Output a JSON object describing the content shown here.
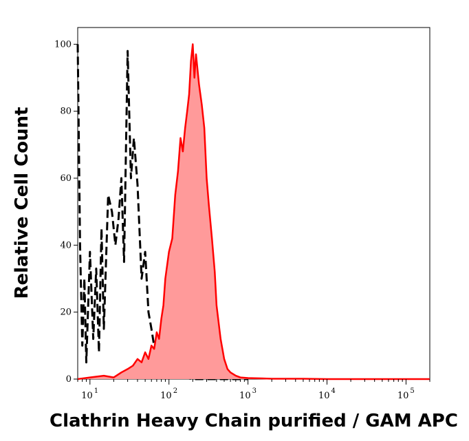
{
  "chart_data": {
    "type": "area",
    "xlabel": "Clathrin Heavy Chain purified / GAM APC",
    "ylabel": "Relative Cell Count",
    "x_scale": "log",
    "xlim": [
      7,
      200000
    ],
    "ylim": [
      0,
      105
    ],
    "y_ticks": [
      "0",
      "20",
      "40",
      "60",
      "80",
      "100"
    ],
    "y_tick_values": [
      0,
      20,
      40,
      60,
      80,
      100
    ],
    "x_ticks": [
      {
        "base": "10",
        "exp": "1",
        "value": 10
      },
      {
        "base": "10",
        "exp": "2",
        "value": 100
      },
      {
        "base": "10",
        "exp": "3",
        "value": 1000
      },
      {
        "base": "10",
        "exp": "4",
        "value": 10000
      },
      {
        "base": "10",
        "exp": "5",
        "value": 100000
      }
    ],
    "grid": false,
    "series": [
      {
        "style": "dashed-black",
        "color": "#000000",
        "x": [
          7,
          7.5,
          8,
          8.5,
          9,
          10,
          11,
          12,
          13,
          14,
          15,
          17,
          19,
          21,
          23,
          25,
          27,
          30,
          33,
          36,
          40,
          45,
          50,
          55,
          60,
          70,
          80,
          90,
          100,
          120,
          150,
          200,
          300,
          500,
          1000
        ],
        "y": [
          100,
          40,
          10,
          30,
          5,
          38,
          12,
          33,
          8,
          45,
          15,
          55,
          50,
          40,
          48,
          60,
          35,
          98,
          60,
          72,
          58,
          30,
          38,
          20,
          15,
          5,
          8,
          2,
          6,
          1,
          0.5,
          0,
          0,
          0,
          0
        ]
      },
      {
        "style": "filled-red",
        "color": "#ff0000",
        "fill": "#ff9a9a",
        "x": [
          7,
          10,
          15,
          20,
          25,
          30,
          35,
          40,
          45,
          50,
          55,
          60,
          65,
          70,
          75,
          80,
          85,
          90,
          100,
          110,
          120,
          130,
          140,
          150,
          160,
          170,
          180,
          190,
          200,
          210,
          220,
          240,
          260,
          280,
          300,
          320,
          350,
          380,
          400,
          450,
          500,
          550,
          600,
          700,
          800,
          1000,
          1500,
          2000,
          5000,
          10000,
          50000,
          200000
        ],
        "y": [
          0,
          0.5,
          1,
          0.5,
          2,
          3,
          4,
          6,
          5,
          8,
          6,
          10,
          9,
          14,
          12,
          18,
          22,
          30,
          38,
          42,
          55,
          62,
          72,
          68,
          75,
          80,
          85,
          95,
          100,
          90,
          97,
          88,
          82,
          75,
          60,
          52,
          42,
          32,
          22,
          12,
          6,
          3,
          2,
          1,
          0.5,
          0.3,
          0.2,
          0.1,
          0.1,
          0,
          0,
          0
        ]
      }
    ]
  }
}
